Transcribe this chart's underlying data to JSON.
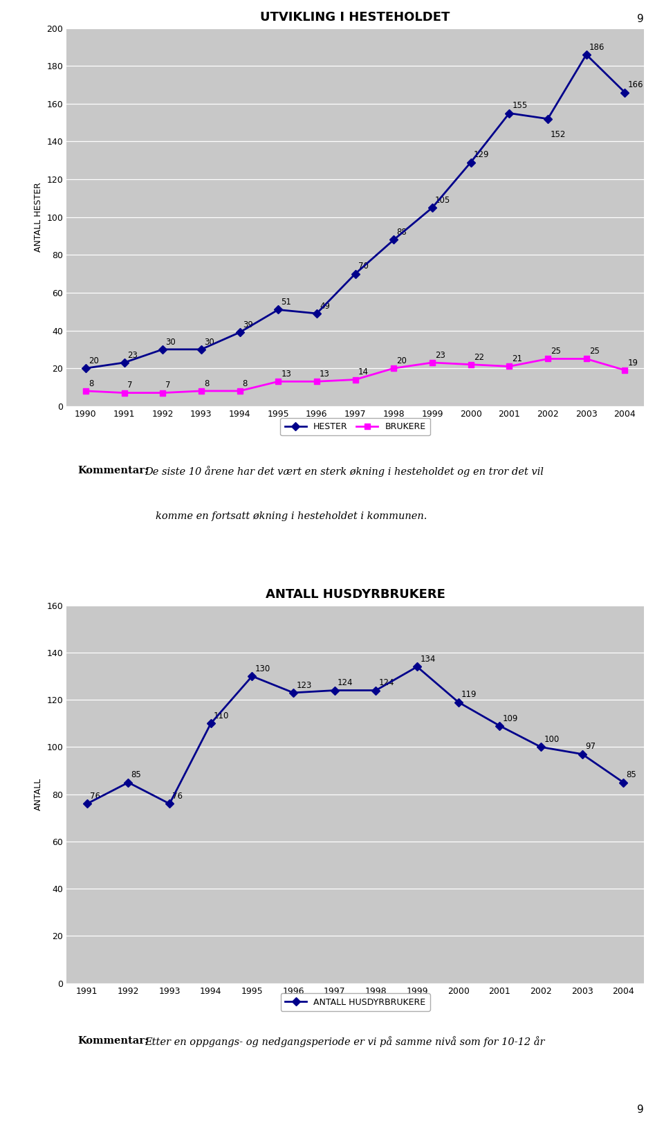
{
  "chart1": {
    "title": "UTVIKLING I HESTEHOLDET",
    "years": [
      1990,
      1991,
      1992,
      1993,
      1994,
      1995,
      1996,
      1997,
      1998,
      1999,
      2000,
      2001,
      2002,
      2003,
      2004
    ],
    "hester": [
      20,
      23,
      30,
      30,
      39,
      51,
      49,
      70,
      88,
      105,
      129,
      155,
      152,
      186,
      166
    ],
    "brukere": [
      8,
      7,
      7,
      8,
      8,
      13,
      13,
      14,
      20,
      23,
      22,
      21,
      25,
      25,
      19
    ],
    "ylabel": "ANTALL HESTER",
    "ylim": [
      0,
      200
    ],
    "yticks": [
      0,
      20,
      40,
      60,
      80,
      100,
      120,
      140,
      160,
      180,
      200
    ],
    "hester_color": "#00008B",
    "brukere_color": "#FF00FF",
    "bg_color": "#C8C8C8",
    "legend_hester": "HESTER",
    "legend_brukere": "BRUKERE",
    "comment_bold": "Kommentar:",
    "comment_line1": "De siste 10 årene har det vært en sterk økning i hesteholdet og en tror det vil",
    "comment_line2": "komme en fortsatt økning i hesteholdet i kommunen."
  },
  "chart2": {
    "title": "ANTALL HUSDYRBRUKERE",
    "years": [
      1991,
      1992,
      1993,
      1994,
      1995,
      1996,
      1997,
      1998,
      1999,
      2000,
      2001,
      2002,
      2003,
      2004
    ],
    "values": [
      76,
      85,
      76,
      110,
      130,
      123,
      124,
      124,
      134,
      119,
      109,
      100,
      97,
      85
    ],
    "ylabel": "ANTALL",
    "ylim": [
      0,
      160
    ],
    "yticks": [
      0,
      20,
      40,
      60,
      80,
      100,
      120,
      140,
      160
    ],
    "line_color": "#00008B",
    "bg_color": "#C8C8C8",
    "legend_label": "ANTALL HUSDYRBRUKERE",
    "comment_bold": "Kommentar:",
    "comment_line1": "Etter en oppgangs- og nedgangsperiode er vi på samme nivå som for 10-12 år"
  },
  "page_number": "9",
  "fig_bg": "#FFFFFF"
}
